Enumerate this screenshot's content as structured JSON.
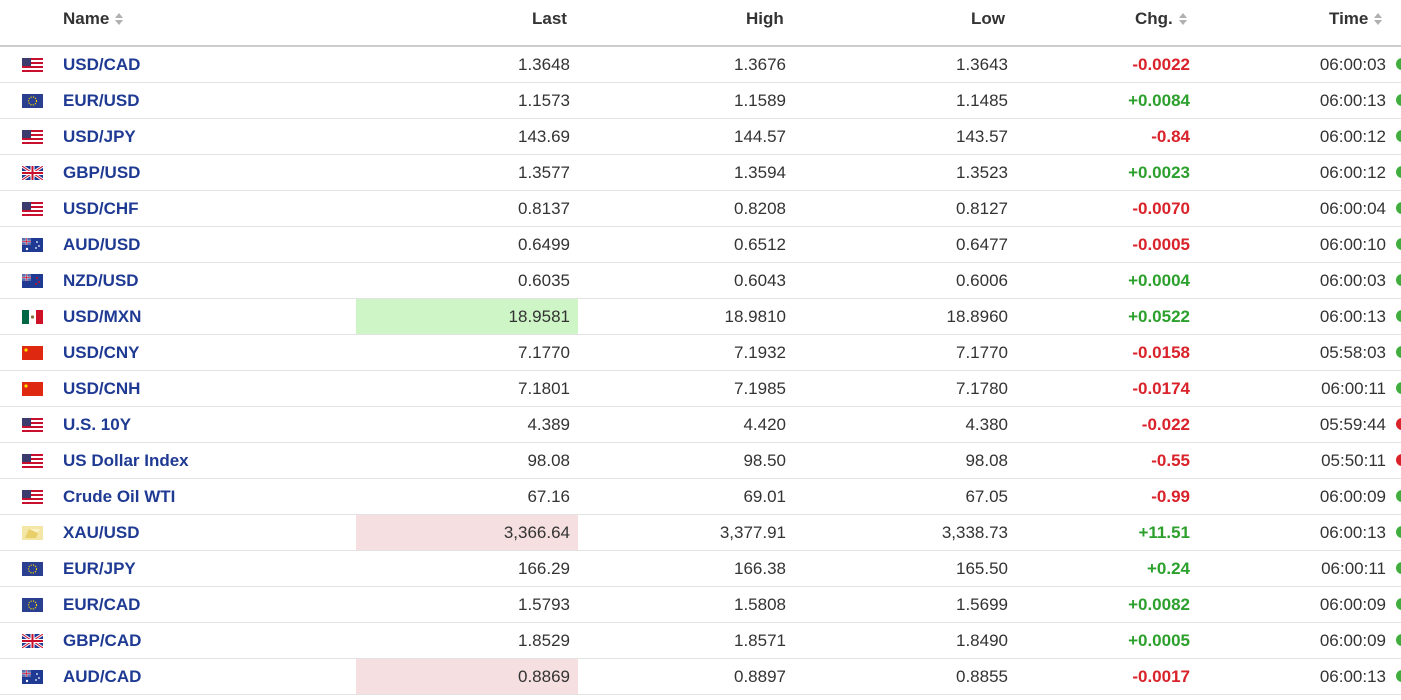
{
  "columns": {
    "name": "Name",
    "last": "Last",
    "high": "High",
    "low": "Low",
    "chg": "Chg.",
    "time": "Time"
  },
  "rows": [
    {
      "flag": "us",
      "name": "USD/CAD",
      "last": "1.3648",
      "high": "1.3676",
      "low": "1.3643",
      "chg": "-0.0022",
      "time": "06:00:03",
      "status": "green",
      "hl": ""
    },
    {
      "flag": "eu",
      "name": "EUR/USD",
      "last": "1.1573",
      "high": "1.1589",
      "low": "1.1485",
      "chg": "+0.0084",
      "time": "06:00:13",
      "status": "green",
      "hl": ""
    },
    {
      "flag": "us",
      "name": "USD/JPY",
      "last": "143.69",
      "high": "144.57",
      "low": "143.57",
      "chg": "-0.84",
      "time": "06:00:12",
      "status": "green",
      "hl": ""
    },
    {
      "flag": "gb",
      "name": "GBP/USD",
      "last": "1.3577",
      "high": "1.3594",
      "low": "1.3523",
      "chg": "+0.0023",
      "time": "06:00:12",
      "status": "green",
      "hl": ""
    },
    {
      "flag": "us",
      "name": "USD/CHF",
      "last": "0.8137",
      "high": "0.8208",
      "low": "0.8127",
      "chg": "-0.0070",
      "time": "06:00:04",
      "status": "green",
      "hl": ""
    },
    {
      "flag": "au",
      "name": "AUD/USD",
      "last": "0.6499",
      "high": "0.6512",
      "low": "0.6477",
      "chg": "-0.0005",
      "time": "06:00:10",
      "status": "green",
      "hl": ""
    },
    {
      "flag": "nz",
      "name": "NZD/USD",
      "last": "0.6035",
      "high": "0.6043",
      "low": "0.6006",
      "chg": "+0.0004",
      "time": "06:00:03",
      "status": "green",
      "hl": ""
    },
    {
      "flag": "mx",
      "name": "USD/MXN",
      "last": "18.9581",
      "high": "18.9810",
      "low": "18.8960",
      "chg": "+0.0522",
      "time": "06:00:13",
      "status": "green",
      "hl": "up"
    },
    {
      "flag": "cn",
      "name": "USD/CNY",
      "last": "7.1770",
      "high": "7.1932",
      "low": "7.1770",
      "chg": "-0.0158",
      "time": "05:58:03",
      "status": "green",
      "hl": ""
    },
    {
      "flag": "cn",
      "name": "USD/CNH",
      "last": "7.1801",
      "high": "7.1985",
      "low": "7.1780",
      "chg": "-0.0174",
      "time": "06:00:11",
      "status": "green",
      "hl": ""
    },
    {
      "flag": "us",
      "name": "U.S. 10Y",
      "last": "4.389",
      "high": "4.420",
      "low": "4.380",
      "chg": "-0.022",
      "time": "05:59:44",
      "status": "red",
      "hl": ""
    },
    {
      "flag": "us",
      "name": "US Dollar Index",
      "last": "98.08",
      "high": "98.50",
      "low": "98.08",
      "chg": "-0.55",
      "time": "05:50:11",
      "status": "red",
      "hl": ""
    },
    {
      "flag": "us",
      "name": "Crude Oil WTI",
      "last": "67.16",
      "high": "69.01",
      "low": "67.05",
      "chg": "-0.99",
      "time": "06:00:09",
      "status": "green",
      "hl": ""
    },
    {
      "flag": "gold",
      "name": "XAU/USD",
      "last": "3,366.64",
      "high": "3,377.91",
      "low": "3,338.73",
      "chg": "+11.51",
      "time": "06:00:13",
      "status": "green",
      "hl": "down"
    },
    {
      "flag": "eu",
      "name": "EUR/JPY",
      "last": "166.29",
      "high": "166.38",
      "low": "165.50",
      "chg": "+0.24",
      "time": "06:00:11",
      "status": "green",
      "hl": ""
    },
    {
      "flag": "eu",
      "name": "EUR/CAD",
      "last": "1.5793",
      "high": "1.5808",
      "low": "1.5699",
      "chg": "+0.0082",
      "time": "06:00:09",
      "status": "green",
      "hl": ""
    },
    {
      "flag": "gb",
      "name": "GBP/CAD",
      "last": "1.8529",
      "high": "1.8571",
      "low": "1.8490",
      "chg": "+0.0005",
      "time": "06:00:09",
      "status": "green",
      "hl": ""
    },
    {
      "flag": "au",
      "name": "AUD/CAD",
      "last": "0.8869",
      "high": "0.8897",
      "low": "0.8855",
      "chg": "-0.0017",
      "time": "06:00:13",
      "status": "green",
      "hl": "down"
    }
  ],
  "colors": {
    "up": "#2ca02c",
    "down": "#d9222a",
    "link": "#1f3a93",
    "highlight_up": "#cdf5c6",
    "highlight_down": "#f5dfe0",
    "status_green": "#3fae3f",
    "status_red": "#d9222a"
  }
}
